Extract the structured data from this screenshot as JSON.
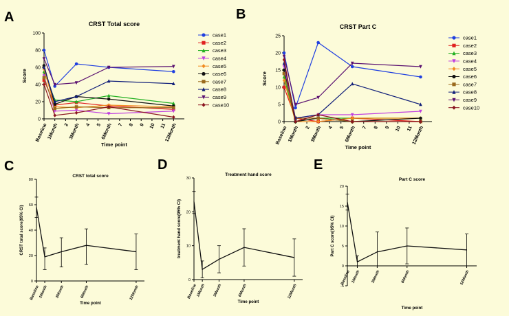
{
  "chart_data": [
    {
      "panel": "A",
      "type": "line",
      "title": "CRST Total score",
      "xlabel": "Time point",
      "ylabel": "Score",
      "ylim": [
        0,
        100
      ],
      "yticks": [
        0,
        20,
        40,
        60,
        80,
        100
      ],
      "xlim": [
        0,
        13
      ],
      "xticks": [
        {
          "label": "Baseline",
          "x": 0
        },
        {
          "label": "1Month",
          "x": 1
        },
        {
          "label": "2",
          "x": 2
        },
        {
          "label": "3Month",
          "x": 3
        },
        {
          "label": "4",
          "x": 4
        },
        {
          "label": "5",
          "x": 5
        },
        {
          "label": "6Month",
          "x": 6
        },
        {
          "label": "7",
          "x": 7
        },
        {
          "label": "8",
          "x": 8
        },
        {
          "label": "9",
          "x": 9
        },
        {
          "label": "10",
          "x": 10
        },
        {
          "label": "11",
          "x": 11
        },
        {
          "label": "12Month",
          "x": 12
        }
      ],
      "x": [
        0,
        1,
        3,
        6,
        12
      ],
      "legend": "right",
      "series": [
        {
          "name": "case1",
          "color": "#1f3fe0",
          "marker": "circle",
          "values": [
            80,
            38,
            64,
            60,
            55
          ]
        },
        {
          "name": "case2",
          "color": "#e02020",
          "marker": "square",
          "values": [
            45,
            16,
            19,
            15,
            11
          ]
        },
        {
          "name": "case3",
          "color": "#22b022",
          "marker": "triangle-up",
          "values": [
            55,
            22,
            20,
            27,
            18
          ]
        },
        {
          "name": "case4",
          "color": "#c040e0",
          "marker": "triangle-down",
          "values": [
            50,
            9,
            10,
            6,
            9
          ]
        },
        {
          "name": "case5",
          "color": "#f08a1e",
          "marker": "diamond",
          "values": [
            58,
            14,
            13,
            16,
            14
          ]
        },
        {
          "name": "case6",
          "color": "#111111",
          "marker": "circle",
          "values": [
            62,
            17,
            26,
            23,
            15
          ]
        },
        {
          "name": "case7",
          "color": "#9a6a1e",
          "marker": "square",
          "values": [
            48,
            12,
            14,
            13,
            13
          ]
        },
        {
          "name": "case8",
          "color": "#12207a",
          "marker": "triangle-up",
          "values": [
            60,
            20,
            26,
            44,
            41
          ]
        },
        {
          "name": "case9",
          "color": "#5a1070",
          "marker": "triangle-down",
          "values": [
            70,
            40,
            42,
            60,
            61
          ]
        },
        {
          "name": "case10",
          "color": "#8a1420",
          "marker": "diamond",
          "values": [
            40,
            4,
            7,
            14,
            2
          ]
        }
      ]
    },
    {
      "panel": "B",
      "type": "line",
      "title": "CRST Part C",
      "xlabel": "Time point",
      "ylabel": "Score",
      "ylim": [
        0,
        25
      ],
      "yticks": [
        0,
        5,
        10,
        15,
        20,
        25
      ],
      "xlim": [
        0,
        13
      ],
      "xticks": [
        {
          "label": "Baseline",
          "x": 0
        },
        {
          "label": "1Month",
          "x": 1
        },
        {
          "label": "2",
          "x": 2
        },
        {
          "label": "3Month",
          "x": 3
        },
        {
          "label": "4",
          "x": 4
        },
        {
          "label": "5",
          "x": 5
        },
        {
          "label": "6Month",
          "x": 6
        },
        {
          "label": "7",
          "x": 7
        },
        {
          "label": "8",
          "x": 8
        },
        {
          "label": "9",
          "x": 9
        },
        {
          "label": "10",
          "x": 10
        },
        {
          "label": "11",
          "x": 11
        },
        {
          "label": "12Month",
          "x": 12
        }
      ],
      "x": [
        0,
        1,
        3,
        6,
        12
      ],
      "legend": "right",
      "series": [
        {
          "name": "case1",
          "color": "#1f3fe0",
          "marker": "circle",
          "values": [
            20,
            4,
            23,
            16,
            13
          ]
        },
        {
          "name": "case2",
          "color": "#e02020",
          "marker": "square",
          "values": [
            10,
            1,
            0,
            1,
            0
          ]
        },
        {
          "name": "case3",
          "color": "#22b022",
          "marker": "triangle-up",
          "values": [
            13,
            0,
            1,
            1,
            1
          ]
        },
        {
          "name": "case4",
          "color": "#c040e0",
          "marker": "triangle-down",
          "values": [
            16,
            1,
            2,
            2,
            3
          ]
        },
        {
          "name": "case5",
          "color": "#f08a1e",
          "marker": "diamond",
          "values": [
            12,
            0,
            0,
            1,
            1
          ]
        },
        {
          "name": "case6",
          "color": "#111111",
          "marker": "circle",
          "values": [
            15,
            0,
            1,
            0,
            1
          ]
        },
        {
          "name": "case7",
          "color": "#9a6a1e",
          "marker": "square",
          "values": [
            14,
            1,
            1,
            0,
            0
          ]
        },
        {
          "name": "case8",
          "color": "#12207a",
          "marker": "triangle-up",
          "values": [
            17,
            1,
            2,
            11,
            5
          ]
        },
        {
          "name": "case9",
          "color": "#5a1070",
          "marker": "triangle-down",
          "values": [
            19,
            5,
            7,
            17,
            16
          ]
        },
        {
          "name": "case10",
          "color": "#8a1420",
          "marker": "diamond",
          "values": [
            18,
            0,
            2,
            0,
            0
          ]
        }
      ]
    },
    {
      "panel": "C",
      "type": "line",
      "title": "CRST total score",
      "xlabel": "Time point",
      "ylabel": "CRST total score(95% CI)",
      "ylim": [
        0,
        80
      ],
      "yticks": [
        0,
        20,
        40,
        60,
        80
      ],
      "xlim": [
        0,
        13
      ],
      "xticks": [
        {
          "label": "Baseline",
          "x": 0
        },
        {
          "label": "1Month",
          "x": 1
        },
        {
          "label": "3Month",
          "x": 3
        },
        {
          "label": "6Month",
          "x": 6
        },
        {
          "label": "12Month",
          "x": 12
        }
      ],
      "x": [
        0,
        1,
        3,
        6,
        12
      ],
      "series": [
        {
          "name": "",
          "color": "#111111",
          "values": [
            58,
            19,
            23,
            28,
            23
          ],
          "ci_low": [
            50,
            9,
            11,
            13,
            9
          ],
          "ci_high": [
            66,
            26,
            34,
            41,
            37
          ]
        }
      ]
    },
    {
      "panel": "D",
      "type": "line",
      "title": "Treatment hand score",
      "xlabel": "Time point",
      "ylabel": "treatment hand score(95% CI)",
      "ylim": [
        0,
        30
      ],
      "yticks": [
        0,
        10,
        20,
        30
      ],
      "xlim": [
        0,
        13
      ],
      "xticks": [
        {
          "label": "Baseline",
          "x": 0
        },
        {
          "label": "1Month",
          "x": 1
        },
        {
          "label": "3Month",
          "x": 3
        },
        {
          "label": "6Month",
          "x": 6
        },
        {
          "label": "12Month",
          "x": 12
        }
      ],
      "x": [
        0,
        1,
        3,
        6,
        12
      ],
      "series": [
        {
          "name": "",
          "color": "#111111",
          "values": [
            23,
            3,
            6,
            9.5,
            6.5
          ],
          "ci_low": [
            19.5,
            0.5,
            2,
            4,
            1
          ],
          "ci_high": [
            26,
            5.5,
            10,
            15,
            12
          ]
        }
      ]
    },
    {
      "panel": "E",
      "type": "line",
      "title": "Part C score",
      "xlabel": "Time point",
      "ylabel": "Part C score(95% CI)",
      "ylim": [
        -5,
        20
      ],
      "yticks": [
        -5,
        0,
        5,
        10,
        15,
        20
      ],
      "xlim": [
        0,
        13
      ],
      "xticks": [
        {
          "label": "Baseline",
          "x": 0
        },
        {
          "label": "1Month",
          "x": 1
        },
        {
          "label": "3Month",
          "x": 3
        },
        {
          "label": "6Month",
          "x": 6
        },
        {
          "label": "12Month",
          "x": 12
        }
      ],
      "x": [
        0,
        1,
        3,
        6,
        12
      ],
      "series": [
        {
          "name": "",
          "color": "#111111",
          "values": [
            16,
            1,
            3.5,
            5,
            4
          ],
          "ci_low": [
            14,
            0,
            0,
            0.5,
            0
          ],
          "ci_high": [
            18,
            2.5,
            8.5,
            9.5,
            8
          ]
        }
      ]
    }
  ]
}
